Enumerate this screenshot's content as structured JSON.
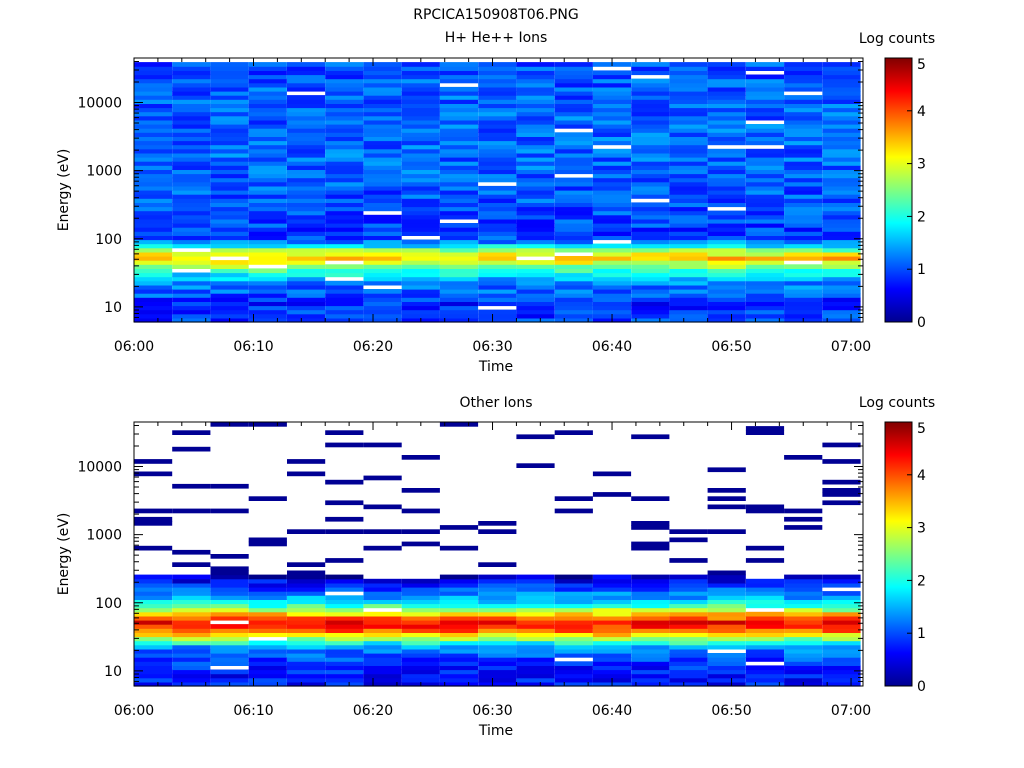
{
  "figure_title": "RPCICA150908T06.PNG",
  "chart_data": [
    {
      "type": "heatmap",
      "title": "H+ He++ Ions",
      "xlabel": "Time",
      "ylabel": "Energy (eV)",
      "x_ticks": [
        "06:00",
        "06:10",
        "06:20",
        "06:30",
        "06:40",
        "06:50",
        "07:00"
      ],
      "y_ticks": [
        "10",
        "100",
        "1000",
        "10000"
      ],
      "y_scale": "log",
      "ylim": [
        6,
        45000
      ],
      "xlim": [
        "06:00",
        "07:01"
      ],
      "colorbar": {
        "label": "Log counts",
        "ticks": [
          "0",
          "1",
          "2",
          "3",
          "4",
          "5"
        ],
        "range": [
          0,
          5
        ],
        "colormap": "jet"
      },
      "time_bins": [
        "06:01:36",
        "06:04:48",
        "06:08:00",
        "06:11:12",
        "06:14:24",
        "06:17:36",
        "06:20:48",
        "06:24:00",
        "06:27:12",
        "06:30:24",
        "06:33:36",
        "06:36:48",
        "06:40:00",
        "06:43:12",
        "06:46:24",
        "06:49:36",
        "06:52:48",
        "06:56:00",
        "06:59:12"
      ],
      "profile": [
        {
          "energy": 8,
          "log_counts": 0.9
        },
        {
          "energy": 12,
          "log_counts": 0.8
        },
        {
          "energy": 16,
          "log_counts": 1.1
        },
        {
          "energy": 22,
          "log_counts": 1.2
        },
        {
          "energy": 30,
          "log_counts": 1.8
        },
        {
          "energy": 40,
          "log_counts": 2.6
        },
        {
          "energy": 52,
          "log_counts": 3.4
        },
        {
          "energy": 65,
          "log_counts": 2.8
        },
        {
          "energy": 85,
          "log_counts": 1.4
        },
        {
          "energy": 110,
          "log_counts": 0.9
        },
        {
          "energy": 300,
          "log_counts": 1.0
        },
        {
          "energy": 1000,
          "log_counts": 1.1
        },
        {
          "energy": 3000,
          "log_counts": 1.1
        },
        {
          "energy": 10000,
          "log_counts": 1.1
        },
        {
          "energy": 40000,
          "log_counts": 1.0
        }
      ]
    },
    {
      "type": "heatmap",
      "title": "Other Ions",
      "xlabel": "Time",
      "ylabel": "Energy (eV)",
      "x_ticks": [
        "06:00",
        "06:10",
        "06:20",
        "06:30",
        "06:40",
        "06:50",
        "07:00"
      ],
      "y_ticks": [
        "10",
        "100",
        "1000",
        "10000"
      ],
      "y_scale": "log",
      "ylim": [
        6,
        45000
      ],
      "xlim": [
        "06:00",
        "07:01"
      ],
      "colorbar": {
        "label": "Log counts",
        "ticks": [
          "0",
          "1",
          "2",
          "3",
          "4",
          "5"
        ],
        "range": [
          0,
          5
        ],
        "colormap": "jet"
      },
      "time_bins": [
        "06:01:36",
        "06:04:48",
        "06:08:00",
        "06:11:12",
        "06:14:24",
        "06:17:36",
        "06:20:48",
        "06:24:00",
        "06:27:12",
        "06:30:24",
        "06:33:36",
        "06:36:48",
        "06:40:00",
        "06:43:12",
        "06:46:24",
        "06:49:36",
        "06:52:48",
        "06:56:00",
        "06:59:12"
      ],
      "profile": [
        {
          "energy": 8,
          "log_counts": 0.7
        },
        {
          "energy": 12,
          "log_counts": 0.8
        },
        {
          "energy": 16,
          "log_counts": 1.0
        },
        {
          "energy": 22,
          "log_counts": 1.3
        },
        {
          "energy": 30,
          "log_counts": 2.6
        },
        {
          "energy": 40,
          "log_counts": 4.0
        },
        {
          "energy": 52,
          "log_counts": 4.4
        },
        {
          "energy": 65,
          "log_counts": 3.6
        },
        {
          "energy": 85,
          "log_counts": 2.4
        },
        {
          "energy": 110,
          "log_counts": 1.6
        },
        {
          "energy": 160,
          "log_counts": 1.0
        },
        {
          "energy": 250,
          "log_counts": 0.3
        }
      ],
      "sparse_high_energy_counts": 0.1
    }
  ]
}
